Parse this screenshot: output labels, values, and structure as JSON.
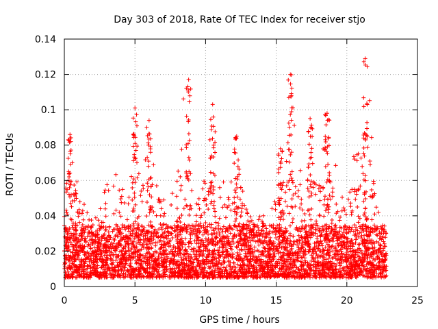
{
  "chart_data": {
    "type": "scatter",
    "title": "Day 303 of 2018, Rate Of TEC Index for receiver stjo",
    "xlabel": "GPS time / hours",
    "ylabel": "ROTI / TECUs",
    "xlim": [
      0,
      25
    ],
    "ylim": [
      0,
      0.14
    ],
    "xticks": [
      0,
      5,
      10,
      15,
      20,
      25
    ],
    "xtick_labels": [
      "0",
      "5",
      "10",
      "15",
      "20",
      "25"
    ],
    "yticks": [
      0,
      0.02,
      0.04,
      0.06,
      0.08,
      0.1,
      0.12,
      0.14
    ],
    "ytick_labels": [
      "0",
      "0.02",
      "0.04",
      "0.06",
      "0.08",
      "0.1",
      "0.12",
      "0.14"
    ],
    "grid": true,
    "marker": "+",
    "color": "#ff0000",
    "series": [
      {
        "name": "ROTI",
        "envelope": {
          "x": [
            0.0,
            0.5,
            1.0,
            1.5,
            2.0,
            2.5,
            3.0,
            3.5,
            4.0,
            4.5,
            5.0,
            5.5,
            6.0,
            6.5,
            7.0,
            7.5,
            8.0,
            8.5,
            9.0,
            9.5,
            10.0,
            10.5,
            11.0,
            11.5,
            12.0,
            12.5,
            13.0,
            13.5,
            14.0,
            14.5,
            15.0,
            15.5,
            16.0,
            16.5,
            17.0,
            17.5,
            18.0,
            18.5,
            19.0,
            19.5,
            20.0,
            20.5,
            21.0,
            21.5,
            22.0,
            22.5,
            22.8
          ],
          "y_max": [
            0.05,
            0.085,
            0.06,
            0.045,
            0.04,
            0.045,
            0.06,
            0.068,
            0.06,
            0.05,
            0.1,
            0.07,
            0.094,
            0.06,
            0.05,
            0.05,
            0.062,
            0.117,
            0.06,
            0.05,
            0.068,
            0.103,
            0.06,
            0.07,
            0.085,
            0.06,
            0.045,
            0.035,
            0.045,
            0.035,
            0.078,
            0.06,
            0.12,
            0.07,
            0.06,
            0.095,
            0.065,
            0.098,
            0.08,
            0.06,
            0.045,
            0.075,
            0.084,
            0.129,
            0.05,
            0.04,
            0.03
          ]
        },
        "peaks": [
          {
            "x": 0.4,
            "y": 0.086
          },
          {
            "x": 5.0,
            "y": 0.101
          },
          {
            "x": 6.0,
            "y": 0.094
          },
          {
            "x": 8.8,
            "y": 0.117
          },
          {
            "x": 10.5,
            "y": 0.103
          },
          {
            "x": 12.2,
            "y": 0.085
          },
          {
            "x": 15.3,
            "y": 0.078
          },
          {
            "x": 16.0,
            "y": 0.12
          },
          {
            "x": 17.4,
            "y": 0.095
          },
          {
            "x": 18.6,
            "y": 0.098
          },
          {
            "x": 21.3,
            "y": 0.129
          }
        ],
        "typical_range": [
          0.005,
          0.035
        ]
      }
    ]
  }
}
